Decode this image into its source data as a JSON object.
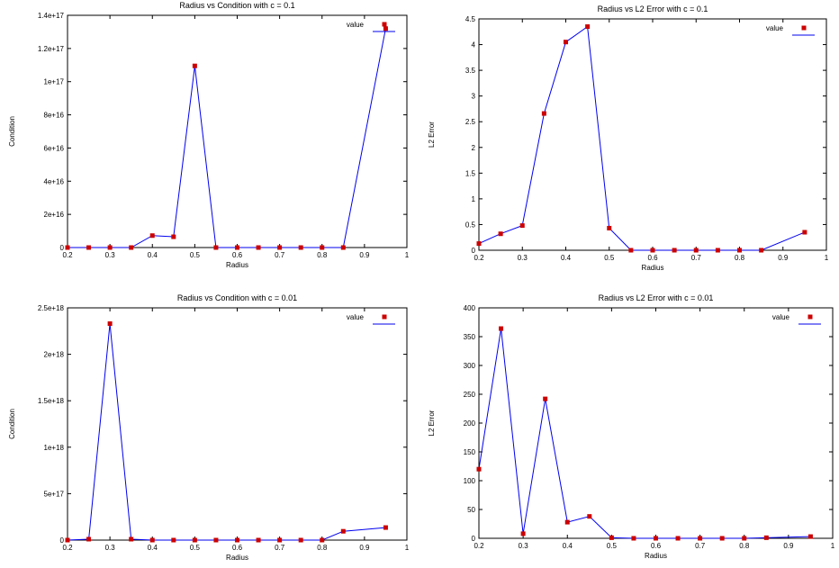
{
  "colors": {
    "point": "#cc0000",
    "line": "#0000ee",
    "axis": "#000000"
  },
  "chart_data": [
    {
      "type": "line",
      "title": "Radius vs Condition with c = 0.1",
      "xlabel": "Radius",
      "ylabel": "Condition",
      "xlim": [
        0.2,
        1
      ],
      "ylim": [
        0,
        1.4e+17
      ],
      "xticks": [
        0.2,
        0.3,
        0.4,
        0.5,
        0.6,
        0.7,
        0.8,
        0.9,
        1
      ],
      "xtick_labels": [
        "0.2",
        "0.3",
        "0.4",
        "0.5",
        "0.6",
        "0.7",
        "0.8",
        "0.9",
        "1"
      ],
      "yticks": [
        0,
        2e+16,
        4e+16,
        6e+16,
        8e+16,
        1e+17,
        1.2e+17,
        1.4e+17
      ],
      "ytick_labels": [
        "0",
        "2e+16",
        "4e+16",
        "6e+16",
        "8e+16",
        "1e+17",
        "1.2e+17",
        "1.4e+17"
      ],
      "legend": "value",
      "legend_position": "top-right",
      "grid": false,
      "series": [
        {
          "name": "value",
          "x": [
            0.2,
            0.25,
            0.3,
            0.35,
            0.4,
            0.45,
            0.5,
            0.55,
            0.6,
            0.65,
            0.7,
            0.75,
            0.8,
            0.85,
            0.95
          ],
          "y": [
            0,
            0,
            0,
            0,
            7200000000000000.0,
            6500000000000000.0,
            1.095e+17,
            0,
            0,
            0,
            0,
            0,
            0,
            0,
            1.32e+17
          ]
        }
      ]
    },
    {
      "type": "line",
      "title": "Radius vs L2 Error with c = 0.1",
      "xlabel": "Radius",
      "ylabel": "L2 Error",
      "xlim": [
        0.2,
        1
      ],
      "ylim": [
        0,
        4.5
      ],
      "xticks": [
        0.2,
        0.3,
        0.4,
        0.5,
        0.6,
        0.7,
        0.8,
        0.9,
        1
      ],
      "xtick_labels": [
        "0.2",
        "0.3",
        "0.4",
        "0.5",
        "0.6",
        "0.7",
        "0.8",
        "0.9",
        "1"
      ],
      "yticks": [
        0,
        0.5,
        1,
        1.5,
        2,
        2.5,
        3,
        3.5,
        4,
        4.5
      ],
      "ytick_labels": [
        "0",
        "0.5",
        "1",
        "1.5",
        "2",
        "2.5",
        "3",
        "3.5",
        "4",
        "4.5"
      ],
      "legend": "value",
      "legend_position": "top-right",
      "grid": false,
      "series": [
        {
          "name": "value",
          "x": [
            0.2,
            0.25,
            0.3,
            0.35,
            0.4,
            0.45,
            0.5,
            0.55,
            0.6,
            0.65,
            0.7,
            0.75,
            0.8,
            0.85,
            0.95
          ],
          "y": [
            0.13,
            0.32,
            0.48,
            2.66,
            4.05,
            4.35,
            0.43,
            0,
            0,
            0,
            0,
            0,
            0,
            0,
            0.35
          ]
        }
      ]
    },
    {
      "type": "line",
      "title": "Radius vs Condition with c = 0.01",
      "xlabel": "Radius",
      "ylabel": "Condition",
      "xlim": [
        0.2,
        1
      ],
      "ylim": [
        0,
        2.5e+18
      ],
      "xticks": [
        0.2,
        0.3,
        0.4,
        0.5,
        0.6,
        0.7,
        0.8,
        0.9,
        1
      ],
      "xtick_labels": [
        "0.2",
        "0.3",
        "0.4",
        "0.5",
        "0.6",
        "0.7",
        "0.8",
        "0.9",
        "1"
      ],
      "yticks": [
        0,
        5e+17,
        1e+18,
        1.5e+18,
        2e+18,
        2.5e+18
      ],
      "ytick_labels": [
        "0",
        "5e+17",
        "1e+18",
        "1.5e+18",
        "2e+18",
        "2.5e+18"
      ],
      "legend": "value",
      "legend_position": "top-right",
      "grid": false,
      "series": [
        {
          "name": "value",
          "x": [
            0.2,
            0.25,
            0.3,
            0.35,
            0.4,
            0.45,
            0.5,
            0.55,
            0.6,
            0.65,
            0.7,
            0.75,
            0.8,
            0.85,
            0.95
          ],
          "y": [
            0,
            1e+16,
            2.33e+18,
            1e+16,
            0,
            0,
            0,
            0,
            0,
            0,
            0,
            0,
            0,
            9.5e+16,
            1.35e+17
          ]
        }
      ]
    },
    {
      "type": "line",
      "title": "Radius vs L2 Error with c = 0.01",
      "xlabel": "Radius",
      "ylabel": "L2 Error",
      "xlim": [
        0.2,
        1
      ],
      "ylim": [
        0,
        400
      ],
      "xticks": [
        0.2,
        0.3,
        0.4,
        0.5,
        0.6,
        0.7,
        0.8,
        0.9,
        1
      ],
      "xtick_labels": [
        "0.2",
        "0.3",
        "0.4",
        "0.5",
        "0.6",
        "0.7",
        "0.8",
        "0.9",
        "1"
      ],
      "yticks": [
        0,
        50,
        100,
        150,
        200,
        250,
        300,
        350,
        400
      ],
      "ytick_labels": [
        "0",
        "50",
        "100",
        "150",
        "200",
        "250",
        "300",
        "350",
        "400"
      ],
      "legend": "value",
      "legend_position": "top-right",
      "grid": false,
      "series": [
        {
          "name": "value",
          "x": [
            0.2,
            0.25,
            0.3,
            0.35,
            0.4,
            0.45,
            0.5,
            0.55,
            0.6,
            0.65,
            0.7,
            0.75,
            0.8,
            0.85,
            0.95
          ],
          "y": [
            120,
            364,
            8,
            242,
            28,
            38,
            1,
            0,
            0,
            0,
            0,
            0,
            0,
            1,
            3
          ]
        }
      ]
    }
  ]
}
